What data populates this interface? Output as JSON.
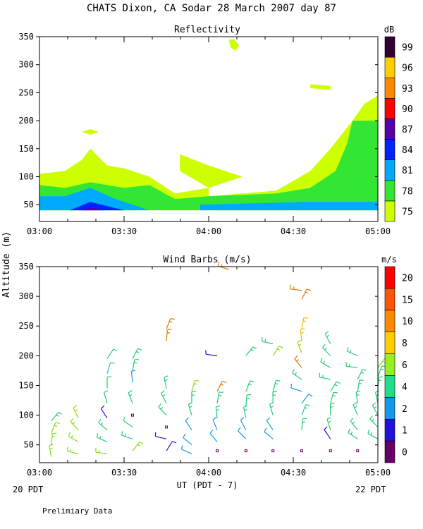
{
  "title": "CHATS Dixon, CA   Sodar  28 March 2007  day  87",
  "footer_note": "Prelimiary Data",
  "y_axis_label": "Altitude  (m)",
  "x_axis_label": "UT  (PDT - 7)",
  "left_bottom_label": "20 PDT",
  "right_bottom_label": "22 PDT",
  "chart_data": [
    {
      "type": "heatmap",
      "title": "Reflectivity",
      "x_tick_labels": [
        "03:00",
        "03:30",
        "04:00",
        "04:30",
        "05:00"
      ],
      "x_range_hours": [
        3.0,
        5.0
      ],
      "ylim": [
        20,
        350
      ],
      "y_ticks": [
        50,
        100,
        150,
        200,
        250,
        300,
        350
      ],
      "colorbar": {
        "unit": "dB",
        "labels": [
          "75",
          "78",
          "81",
          "84",
          "87",
          "90",
          "93",
          "96",
          "99"
        ],
        "colors": [
          "#ccff00",
          "#33e633",
          "#00aaff",
          "#0022ff",
          "#5500aa",
          "#ff0000",
          "#ff8800",
          "#ffcc00",
          "#330033"
        ]
      },
      "contours": [
        {
          "level": "75",
          "color": "#ccff00",
          "points": [
            [
              3.0,
              40
            ],
            [
              3.0,
              105
            ],
            [
              3.15,
              110
            ],
            [
              3.25,
              130
            ],
            [
              3.3,
              150
            ],
            [
              3.4,
              120
            ],
            [
              3.5,
              115
            ],
            [
              3.65,
              100
            ],
            [
              3.8,
              70
            ],
            [
              4.0,
              80
            ],
            [
              4.0,
              65
            ],
            [
              4.2,
              70
            ],
            [
              4.4,
              75
            ],
            [
              4.6,
              110
            ],
            [
              4.72,
              150
            ],
            [
              4.85,
              200
            ],
            [
              4.92,
              230
            ],
            [
              5.0,
              245
            ],
            [
              5.0,
              40
            ]
          ]
        },
        {
          "level": "75",
          "color": "#ccff00",
          "points": [
            [
              3.83,
              140
            ],
            [
              4.0,
              120
            ],
            [
              4.2,
              100
            ],
            [
              4.1,
              90
            ],
            [
              4.0,
              80
            ],
            [
              3.83,
              110
            ]
          ]
        },
        {
          "level": "75",
          "color": "#ccff00",
          "points": [
            [
              4.15,
              345
            ],
            [
              4.18,
              335
            ],
            [
              4.16,
              325
            ],
            [
              4.13,
              330
            ],
            [
              4.12,
              345
            ]
          ]
        },
        {
          "level": "75",
          "color": "#ccff00",
          "points": [
            [
              3.3,
              185
            ],
            [
              3.35,
              180
            ],
            [
              3.3,
              175
            ],
            [
              3.25,
              180
            ]
          ]
        },
        {
          "level": "75",
          "color": "#ccff00",
          "points": [
            [
              4.6,
              265
            ],
            [
              4.72,
              262
            ],
            [
              4.72,
              255
            ],
            [
              4.6,
              258
            ]
          ]
        },
        {
          "level": "78",
          "color": "#33e633",
          "points": [
            [
              3.0,
              40
            ],
            [
              3.0,
              85
            ],
            [
              3.15,
              80
            ],
            [
              3.3,
              90
            ],
            [
              3.5,
              80
            ],
            [
              3.65,
              85
            ],
            [
              3.8,
              60
            ],
            [
              4.0,
              65
            ],
            [
              4.4,
              70
            ],
            [
              4.6,
              80
            ],
            [
              4.75,
              110
            ],
            [
              4.82,
              160
            ],
            [
              4.85,
              200
            ],
            [
              5.0,
              200
            ],
            [
              5.0,
              40
            ]
          ]
        },
        {
          "level": "81",
          "color": "#00aaff",
          "points": [
            [
              3.0,
              40
            ],
            [
              3.0,
              65
            ],
            [
              3.15,
              65
            ],
            [
              3.3,
              80
            ],
            [
              3.45,
              60
            ],
            [
              3.65,
              40
            ]
          ]
        },
        {
          "level": "81",
          "color": "#00aaff",
          "points": [
            [
              3.95,
              40
            ],
            [
              3.95,
              50
            ],
            [
              4.6,
              55
            ],
            [
              5.0,
              55
            ],
            [
              5.0,
              40
            ]
          ]
        },
        {
          "level": "84",
          "color": "#0022ff",
          "points": [
            [
              3.18,
              40
            ],
            [
              3.3,
              55
            ],
            [
              3.5,
              40
            ]
          ]
        },
        {
          "level": "87",
          "color": "#5500aa",
          "points": [
            [
              3.25,
              40
            ],
            [
              3.3,
              45
            ],
            [
              3.38,
              40
            ]
          ]
        }
      ]
    },
    {
      "type": "scatter",
      "title": "Wind Barbs (m/s)",
      "x_tick_labels": [
        "03:00",
        "03:30",
        "04:00",
        "04:30",
        "05:00"
      ],
      "x_range_hours": [
        3.0,
        5.0
      ],
      "ylim": [
        20,
        350
      ],
      "y_ticks": [
        50,
        100,
        150,
        200,
        250,
        300,
        350
      ],
      "colorbar": {
        "unit": "m/s",
        "labels": [
          "0",
          "1",
          "2",
          "4",
          "6",
          "8",
          "10",
          "15",
          "20"
        ],
        "colors": [
          "#660066",
          "#2211dd",
          "#1199ee",
          "#22dd88",
          "#99ee22",
          "#ffcc00",
          "#ff8800",
          "#ff5500",
          "#ff0000"
        ]
      },
      "barbs": [
        [
          3.07,
          90,
          4
        ],
        [
          3.07,
          70,
          5
        ],
        [
          3.07,
          50,
          5
        ],
        [
          3.07,
          30,
          5
        ],
        [
          3.23,
          95,
          6
        ],
        [
          3.23,
          75,
          5
        ],
        [
          3.23,
          55,
          5
        ],
        [
          3.23,
          35,
          5
        ],
        [
          3.4,
          195,
          3
        ],
        [
          3.4,
          170,
          3
        ],
        [
          3.4,
          145,
          3
        ],
        [
          3.4,
          120,
          3
        ],
        [
          3.4,
          95,
          1
        ],
        [
          3.4,
          75,
          4
        ],
        [
          3.4,
          55,
          4
        ],
        [
          3.4,
          35,
          5
        ],
        [
          3.55,
          195,
          4
        ],
        [
          3.55,
          175,
          4
        ],
        [
          3.55,
          155,
          2
        ],
        [
          3.55,
          120,
          4
        ],
        [
          3.55,
          100,
          0
        ],
        [
          3.55,
          80,
          3
        ],
        [
          3.55,
          60,
          4
        ],
        [
          3.55,
          40,
          5
        ],
        [
          3.75,
          245,
          10
        ],
        [
          3.75,
          225,
          10
        ],
        [
          3.75,
          145,
          4
        ],
        [
          3.75,
          120,
          4
        ],
        [
          3.75,
          100,
          4
        ],
        [
          3.75,
          80,
          0
        ],
        [
          3.75,
          60,
          1
        ],
        [
          3.75,
          40,
          1
        ],
        [
          3.9,
          140,
          6
        ],
        [
          3.9,
          120,
          4
        ],
        [
          3.9,
          100,
          4
        ],
        [
          3.9,
          75,
          2
        ],
        [
          3.9,
          50,
          2
        ],
        [
          3.9,
          35,
          2
        ],
        [
          4.05,
          200,
          1
        ],
        [
          4.05,
          140,
          10
        ],
        [
          4.05,
          120,
          4
        ],
        [
          4.05,
          95,
          4
        ],
        [
          4.05,
          75,
          2
        ],
        [
          4.05,
          55,
          2
        ],
        [
          4.05,
          40,
          0
        ],
        [
          4.12,
          345,
          10
        ],
        [
          4.22,
          200,
          4
        ],
        [
          4.22,
          140,
          4
        ],
        [
          4.22,
          115,
          4
        ],
        [
          4.22,
          95,
          4
        ],
        [
          4.22,
          75,
          2
        ],
        [
          4.22,
          60,
          2
        ],
        [
          4.22,
          40,
          0
        ],
        [
          4.38,
          220,
          4
        ],
        [
          4.38,
          200,
          6
        ],
        [
          4.38,
          140,
          4
        ],
        [
          4.38,
          120,
          4
        ],
        [
          4.38,
          100,
          4
        ],
        [
          4.38,
          75,
          2
        ],
        [
          4.38,
          60,
          2
        ],
        [
          4.38,
          40,
          0
        ],
        [
          4.55,
          310,
          10
        ],
        [
          4.55,
          295,
          10
        ],
        [
          4.55,
          245,
          8
        ],
        [
          4.55,
          225,
          8
        ],
        [
          4.55,
          205,
          6
        ],
        [
          4.55,
          180,
          10
        ],
        [
          4.55,
          160,
          4
        ],
        [
          4.55,
          140,
          2
        ],
        [
          4.55,
          120,
          2
        ],
        [
          4.55,
          100,
          4
        ],
        [
          4.55,
          75,
          4
        ],
        [
          4.55,
          40,
          0
        ],
        [
          4.72,
          220,
          4
        ],
        [
          4.72,
          200,
          4
        ],
        [
          4.72,
          180,
          4
        ],
        [
          4.72,
          160,
          4
        ],
        [
          4.72,
          140,
          4
        ],
        [
          4.72,
          120,
          4
        ],
        [
          4.72,
          100,
          4
        ],
        [
          4.72,
          75,
          4
        ],
        [
          4.72,
          60,
          1
        ],
        [
          4.72,
          40,
          0
        ],
        [
          4.88,
          200,
          4
        ],
        [
          4.88,
          180,
          4
        ],
        [
          4.88,
          160,
          4
        ],
        [
          4.88,
          140,
          4
        ],
        [
          4.88,
          120,
          4
        ],
        [
          4.88,
          100,
          4
        ],
        [
          4.88,
          75,
          4
        ],
        [
          4.88,
          60,
          4
        ],
        [
          4.88,
          40,
          0
        ],
        [
          5.0,
          180,
          6
        ],
        [
          5.0,
          165,
          4
        ],
        [
          5.0,
          145,
          4
        ],
        [
          5.0,
          120,
          4
        ],
        [
          5.0,
          100,
          4
        ],
        [
          5.0,
          80,
          4
        ],
        [
          5.0,
          60,
          4
        ]
      ]
    }
  ]
}
